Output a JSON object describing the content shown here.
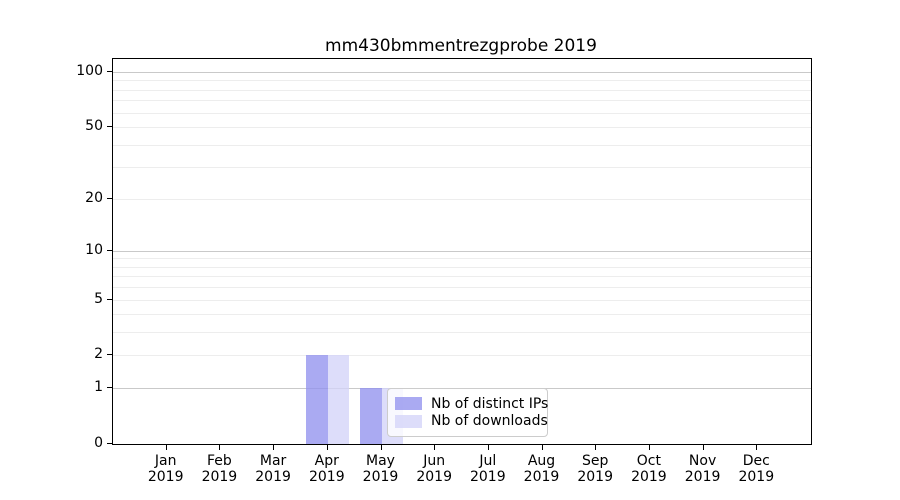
{
  "chart_data": {
    "type": "bar",
    "title": "mm430bmmentrezgprobe 2019",
    "categories": [
      {
        "month": "Jan",
        "year": "2019"
      },
      {
        "month": "Feb",
        "year": "2019"
      },
      {
        "month": "Mar",
        "year": "2019"
      },
      {
        "month": "Apr",
        "year": "2019"
      },
      {
        "month": "May",
        "year": "2019"
      },
      {
        "month": "Jun",
        "year": "2019"
      },
      {
        "month": "Jul",
        "year": "2019"
      },
      {
        "month": "Aug",
        "year": "2019"
      },
      {
        "month": "Sep",
        "year": "2019"
      },
      {
        "month": "Oct",
        "year": "2019"
      },
      {
        "month": "Nov",
        "year": "2019"
      },
      {
        "month": "Dec",
        "year": "2019"
      }
    ],
    "series": [
      {
        "name": "Nb of distinct IPs",
        "color": "#9292ee",
        "values": [
          0,
          0,
          0,
          2,
          1,
          0,
          0,
          0,
          0,
          0,
          0,
          0
        ]
      },
      {
        "name": "Nb of downloads",
        "color": "#d3d3f8",
        "values": [
          0,
          0,
          0,
          2,
          1,
          0,
          0,
          0,
          0,
          0,
          0,
          0
        ]
      }
    ],
    "bar_alpha": 0.78,
    "bar_width_units": 0.4,
    "yscale": "log1p",
    "ylim": [
      0,
      117.6
    ],
    "xlim": [
      -1,
      12
    ],
    "yticks": [
      0,
      1,
      2,
      5,
      10,
      20,
      50,
      100
    ],
    "y_major_gridlines": [
      1,
      10,
      100
    ],
    "y_minor_gridlines": [
      2,
      3,
      4,
      5,
      6,
      7,
      8,
      9,
      20,
      30,
      40,
      50,
      60,
      70,
      80,
      90
    ],
    "grid": "on",
    "legend_position": "lower center",
    "colors": {
      "major_grid": "#c9c9c9",
      "minor_grid": "#ededed",
      "spine": "#000000",
      "legend_border": "#cccccc",
      "text": "#000000"
    }
  }
}
